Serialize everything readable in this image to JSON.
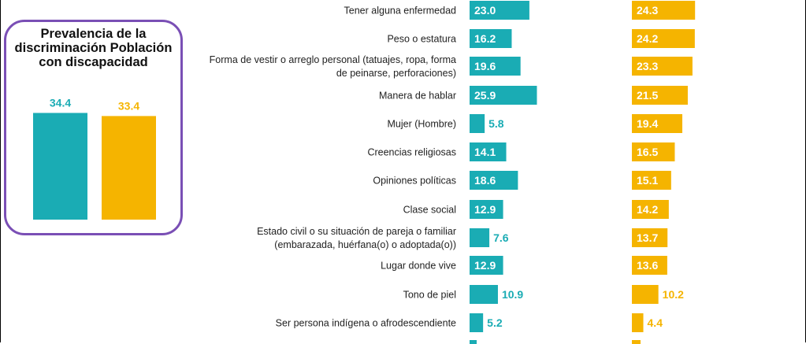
{
  "colors": {
    "series_1": "#1aacb4",
    "series_2": "#f5b400",
    "inset_border": "#7a4fb5"
  },
  "inset": {
    "title": "Prevalencia de la discriminación Población con discapacidad",
    "chart_data": {
      "type": "bar",
      "values": [
        34.4,
        33.4
      ],
      "value_labels": [
        "34.4",
        "33.4"
      ]
    }
  },
  "chart_data": {
    "type": "bar",
    "orientation": "horizontal",
    "categories": [
      "Tener alguna enfermedad",
      "Peso o estatura",
      "Forma de vestir o arreglo personal (tatuajes, ropa, forma de peinarse, perforaciones)",
      "Manera de hablar",
      "Mujer (Hombre)",
      "Creencias religiosas",
      "Opiniones políticas",
      "Clase social",
      "Estado civil o su situación de pareja o familiar (embarazada, huérfana(o) o adoptada(o))",
      "Lugar donde vive",
      "Tono de piel",
      "Ser persona indígena o afrodescendiente"
    ],
    "category_lines": [
      [
        "Tener alguna enfermedad"
      ],
      [
        "Peso o estatura"
      ],
      [
        "Forma de vestir o arreglo personal (tatuajes, ropa, forma",
        "de peinarse, perforaciones)"
      ],
      [
        "Manera de hablar"
      ],
      [
        "Mujer (Hombre)"
      ],
      [
        "Creencias religiosas"
      ],
      [
        "Opiniones políticas"
      ],
      [
        "Clase social"
      ],
      [
        "Estado civil o su situación de pareja o familiar",
        "(embarazada, huérfana(o) o adoptada(o))"
      ],
      [
        "Lugar donde vive"
      ],
      [
        "Tono de piel"
      ],
      [
        "Ser persona indígena o afrodescendiente"
      ]
    ],
    "series": [
      {
        "values": [
          23.0,
          16.2,
          19.6,
          25.9,
          5.8,
          14.1,
          18.6,
          12.9,
          7.6,
          12.9,
          10.9,
          5.2
        ],
        "labels": [
          "23.0",
          "16.2",
          "19.6",
          "25.9",
          "5.8",
          "14.1",
          "18.6",
          "12.9",
          "7.6",
          "12.9",
          "10.9",
          "5.2"
        ]
      },
      {
        "values": [
          24.3,
          24.2,
          23.3,
          21.5,
          19.4,
          16.5,
          15.1,
          14.2,
          13.7,
          13.6,
          10.2,
          4.4
        ],
        "labels": [
          "24.3",
          "24.2",
          "23.3",
          "21.5",
          "19.4",
          "16.5",
          "15.1",
          "14.2",
          "13.7",
          "13.6",
          "10.2",
          "4.4"
        ]
      }
    ]
  }
}
